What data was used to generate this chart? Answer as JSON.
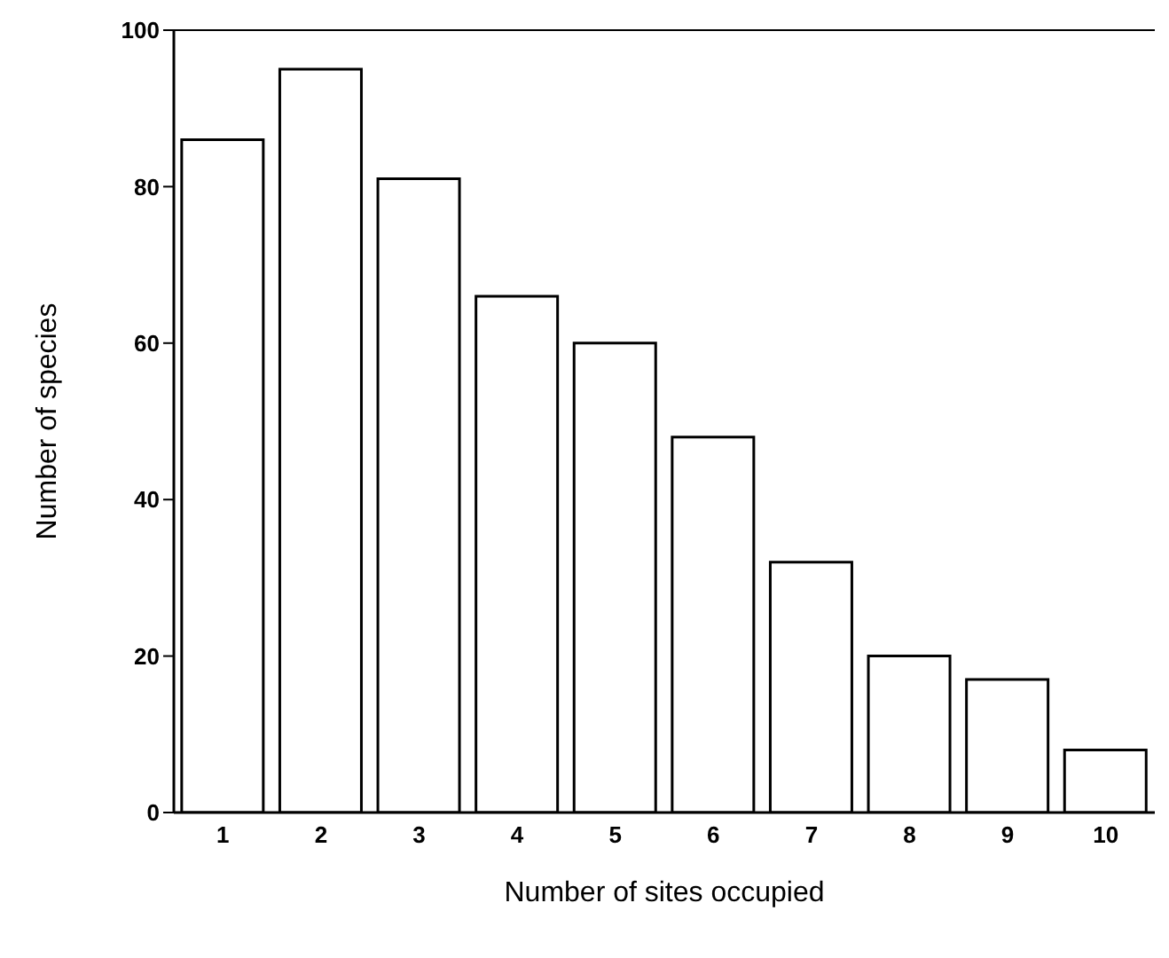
{
  "chart_data": {
    "type": "bar",
    "xlabel": "Number of sites occupied",
    "ylabel": "Number of species",
    "categories": [
      "1",
      "2",
      "3",
      "4",
      "5",
      "6",
      "7",
      "8",
      "9",
      "10"
    ],
    "values": [
      86,
      95,
      81,
      66,
      60,
      48,
      32,
      20,
      17,
      8
    ],
    "color": "#ffffff",
    "ylim": [
      0,
      100
    ],
    "yticks": [
      0,
      20,
      40,
      60,
      80,
      100
    ],
    "grid": false,
    "legend": false
  }
}
